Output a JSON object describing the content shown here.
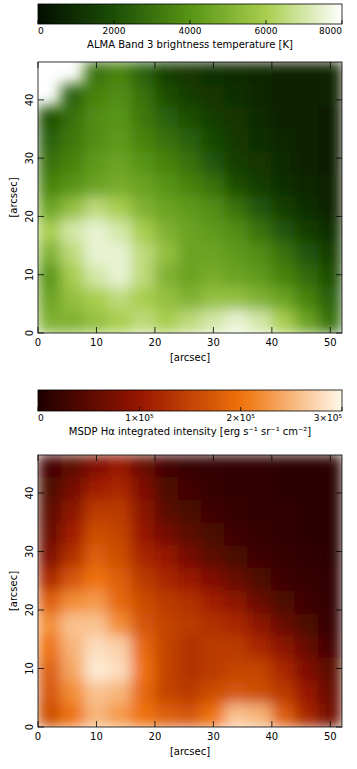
{
  "chart_data": [
    {
      "type": "heatmap",
      "color": "green",
      "colorbar_label": "ALMA Band 3 brightness temperature [K]",
      "colorbar_lim": [
        0,
        8000
      ],
      "colorbar_ticks": [
        0,
        2000,
        4000,
        6000,
        8000
      ],
      "xlabel": "[arcsec]",
      "ylabel": "[arcsec]",
      "xlim": [
        0,
        52
      ],
      "ylim": [
        0,
        46.5
      ],
      "xticks": [
        0,
        10,
        20,
        30,
        40,
        50
      ],
      "yticks": [
        0,
        10,
        20,
        30,
        40
      ],
      "cells": [
        [
          null,
          null,
          3000,
          3500,
          2500,
          1500,
          1200,
          1000,
          900,
          800,
          700,
          700,
          600
        ],
        [
          null,
          2500,
          3500,
          3800,
          3000,
          2000,
          1500,
          1200,
          1000,
          800,
          700,
          600,
          600
        ],
        [
          2000,
          3000,
          3800,
          4000,
          3200,
          2500,
          2000,
          1500,
          1200,
          900,
          700,
          600,
          500
        ],
        [
          2500,
          3200,
          3800,
          4200,
          3500,
          3000,
          2500,
          1800,
          1300,
          1000,
          800,
          600,
          500
        ],
        [
          3000,
          3500,
          4200,
          4500,
          4000,
          3500,
          3000,
          2200,
          1500,
          1200,
          900,
          700,
          500
        ],
        [
          3500,
          4000,
          4500,
          4800,
          4500,
          4000,
          3500,
          3000,
          2000,
          1500,
          1000,
          800,
          600
        ],
        [
          4500,
          5500,
          6500,
          6000,
          5000,
          4500,
          4200,
          3800,
          3000,
          2200,
          1500,
          1000,
          700
        ],
        [
          6000,
          7000,
          7500,
          7000,
          6000,
          5000,
          4500,
          4200,
          3800,
          3000,
          2200,
          1500,
          1000
        ],
        [
          5000,
          6500,
          7500,
          7500,
          6500,
          5500,
          4500,
          4500,
          4200,
          3800,
          3000,
          2200,
          1500
        ],
        [
          4000,
          6000,
          7000,
          7500,
          6500,
          5000,
          4500,
          4800,
          4500,
          4200,
          3500,
          2800,
          2000
        ],
        [
          4500,
          5500,
          6000,
          6500,
          6000,
          5500,
          5000,
          5500,
          5500,
          5000,
          4500,
          3500,
          2500
        ],
        [
          5000,
          5000,
          5500,
          6000,
          6500,
          6000,
          6500,
          7000,
          7500,
          7000,
          6000,
          4500,
          3000
        ]
      ]
    },
    {
      "type": "heatmap",
      "color": "red",
      "colorbar_label": "MSDP Hα integrated intensity [erg s⁻¹ sr⁻¹ cm⁻²]",
      "colorbar_lim": [
        0,
        300000
      ],
      "colorbar_ticks": [
        0,
        {
          "value": 100000,
          "label": "1×10⁵"
        },
        {
          "value": 200000,
          "label": "2×10⁵"
        },
        {
          "value": 300000,
          "label": "3×10⁵"
        }
      ],
      "xlabel": "[arcsec]",
      "ylabel": "[arcsec]",
      "xlim": [
        0,
        52
      ],
      "ylim": [
        0,
        46.5
      ],
      "xticks": [
        0,
        10,
        20,
        30,
        40,
        50
      ],
      "yticks": [
        0,
        10,
        20,
        30,
        40
      ],
      "cells": [
        [
          30000,
          50000,
          80000,
          100000,
          60000,
          30000,
          20000,
          15000,
          15000,
          15000,
          10000,
          10000,
          10000
        ],
        [
          40000,
          70000,
          110000,
          120000,
          80000,
          40000,
          30000,
          20000,
          15000,
          15000,
          10000,
          10000,
          10000
        ],
        [
          50000,
          90000,
          140000,
          140000,
          90000,
          50000,
          35000,
          25000,
          20000,
          15000,
          15000,
          10000,
          10000
        ],
        [
          60000,
          110000,
          160000,
          150000,
          100000,
          70000,
          50000,
          35000,
          25000,
          20000,
          15000,
          10000,
          10000
        ],
        [
          80000,
          130000,
          180000,
          160000,
          120000,
          100000,
          70000,
          50000,
          35000,
          25000,
          20000,
          15000,
          10000
        ],
        [
          120000,
          170000,
          200000,
          180000,
          140000,
          120000,
          100000,
          80000,
          60000,
          40000,
          25000,
          20000,
          15000
        ],
        [
          180000,
          220000,
          230000,
          190000,
          160000,
          140000,
          130000,
          110000,
          90000,
          60000,
          40000,
          25000,
          15000
        ],
        [
          220000,
          260000,
          260000,
          220000,
          170000,
          150000,
          140000,
          130000,
          120000,
          90000,
          60000,
          40000,
          20000
        ],
        [
          200000,
          250000,
          280000,
          270000,
          190000,
          150000,
          130000,
          140000,
          140000,
          120000,
          90000,
          60000,
          30000
        ],
        [
          180000,
          240000,
          290000,
          280000,
          200000,
          150000,
          130000,
          140000,
          150000,
          150000,
          120000,
          80000,
          50000
        ],
        [
          170000,
          220000,
          260000,
          250000,
          190000,
          150000,
          140000,
          160000,
          170000,
          160000,
          140000,
          100000,
          60000
        ],
        [
          160000,
          200000,
          250000,
          230000,
          200000,
          180000,
          170000,
          200000,
          260000,
          250000,
          180000,
          120000,
          70000
        ]
      ]
    }
  ]
}
